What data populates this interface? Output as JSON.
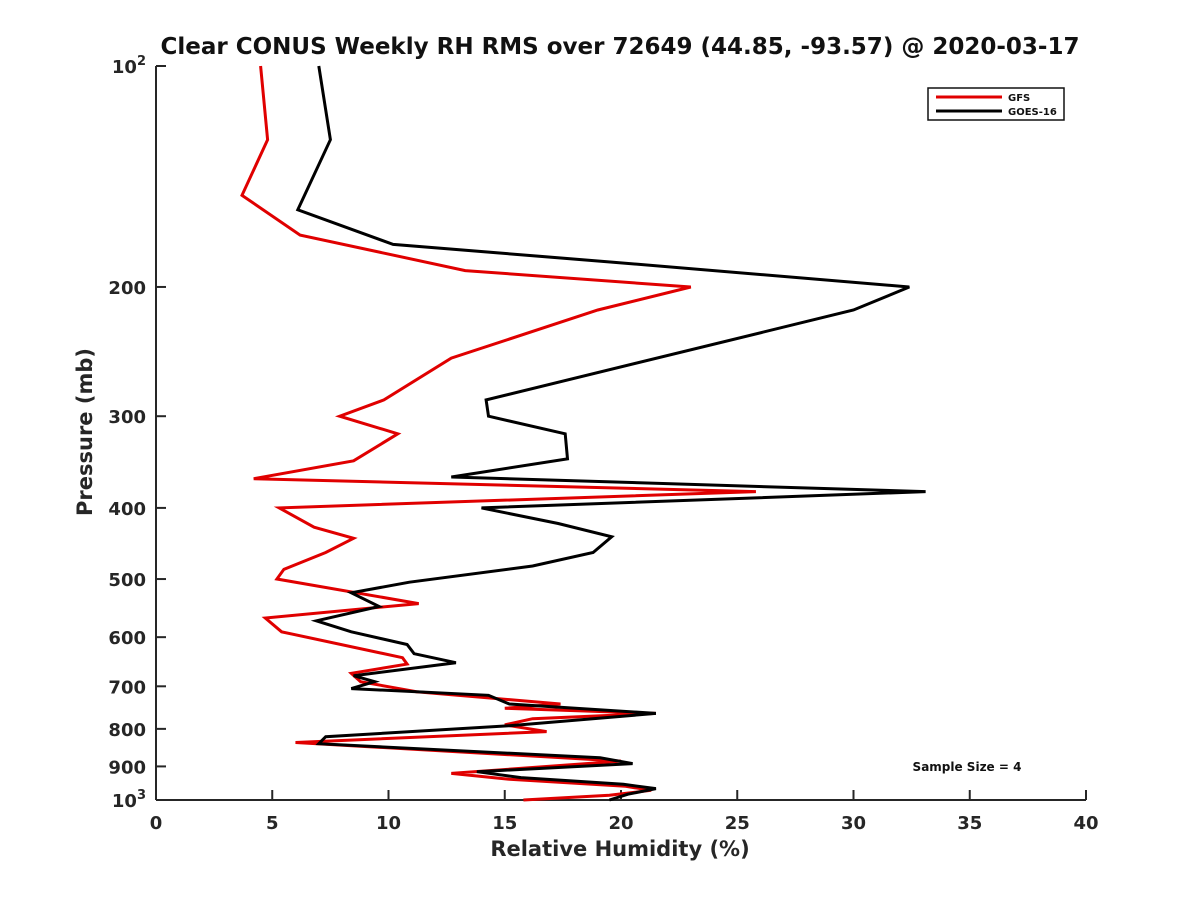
{
  "chart_data": {
    "type": "line",
    "title": "Clear CONUS Weekly RH RMS over 72649 (44.85, -93.57) @ 2020-03-17",
    "xlabel": "Relative Humidity (%)",
    "ylabel": "Pressure (mb)",
    "xlim": [
      0,
      40
    ],
    "ylim": [
      100,
      1000
    ],
    "y_scale": "log",
    "y_reversed": true,
    "x_ticks": [
      "0",
      "5",
      "10",
      "15",
      "20",
      "25",
      "30",
      "35",
      "40"
    ],
    "y_ticks": [
      {
        "value": 100,
        "base": "10",
        "exp": "2"
      },
      {
        "value": 200,
        "label": "200"
      },
      {
        "value": 300,
        "label": "300"
      },
      {
        "value": 400,
        "label": "400"
      },
      {
        "value": 500,
        "label": "500"
      },
      {
        "value": 600,
        "label": "600"
      },
      {
        "value": 700,
        "label": "700"
      },
      {
        "value": 800,
        "label": "800"
      },
      {
        "value": 900,
        "label": "900"
      },
      {
        "value": 1000,
        "base": "10",
        "exp": "3"
      }
    ],
    "legend_position": "top-right",
    "grid": false,
    "annotation": "Sample Size = 4",
    "series": [
      {
        "name": "GFS",
        "color": "#e00000",
        "points": [
          [
            4.5,
            100
          ],
          [
            4.8,
            126
          ],
          [
            3.7,
            150
          ],
          [
            6.2,
            170
          ],
          [
            13.3,
            190
          ],
          [
            23.0,
            200
          ],
          [
            19.0,
            215
          ],
          [
            12.7,
            250
          ],
          [
            9.8,
            285
          ],
          [
            7.9,
            300
          ],
          [
            10.4,
            317
          ],
          [
            8.5,
            345
          ],
          [
            4.2,
            365
          ],
          [
            25.8,
            380
          ],
          [
            5.3,
            400
          ],
          [
            6.8,
            425
          ],
          [
            8.5,
            440
          ],
          [
            7.3,
            460
          ],
          [
            5.5,
            485
          ],
          [
            5.2,
            500
          ],
          [
            11.3,
            540
          ],
          [
            4.7,
            565
          ],
          [
            5.4,
            590
          ],
          [
            10.6,
            640
          ],
          [
            10.8,
            653
          ],
          [
            8.4,
            672
          ],
          [
            8.8,
            690
          ],
          [
            11.2,
            712
          ],
          [
            17.4,
            740
          ],
          [
            15.0,
            750
          ],
          [
            21.5,
            762
          ],
          [
            16.2,
            775
          ],
          [
            15.0,
            790
          ],
          [
            16.8,
            807
          ],
          [
            6.0,
            835
          ],
          [
            20.0,
            885
          ],
          [
            12.7,
            920
          ],
          [
            15.2,
            937
          ],
          [
            20.2,
            958
          ],
          [
            21.3,
            970
          ],
          [
            19.5,
            985
          ],
          [
            15.8,
            1000
          ]
        ]
      },
      {
        "name": "GOES-16",
        "color": "#000000",
        "points": [
          [
            7.0,
            100
          ],
          [
            7.5,
            126
          ],
          [
            6.1,
            157
          ],
          [
            10.2,
            175
          ],
          [
            19.6,
            185
          ],
          [
            32.4,
            200
          ],
          [
            30.0,
            215
          ],
          [
            14.2,
            285
          ],
          [
            14.3,
            300
          ],
          [
            17.6,
            317
          ],
          [
            17.7,
            343
          ],
          [
            12.7,
            363
          ],
          [
            33.1,
            380
          ],
          [
            14.0,
            400
          ],
          [
            17.3,
            420
          ],
          [
            19.6,
            438
          ],
          [
            18.8,
            460
          ],
          [
            16.2,
            480
          ],
          [
            10.9,
            505
          ],
          [
            8.4,
            522
          ],
          [
            9.6,
            545
          ],
          [
            6.9,
            570
          ],
          [
            8.4,
            590
          ],
          [
            10.8,
            614
          ],
          [
            11.1,
            632
          ],
          [
            12.9,
            650
          ],
          [
            8.5,
            677
          ],
          [
            9.4,
            690
          ],
          [
            8.4,
            705
          ],
          [
            14.3,
            720
          ],
          [
            15.2,
            740
          ],
          [
            21.5,
            762
          ],
          [
            15.2,
            792
          ],
          [
            7.3,
            820
          ],
          [
            7.0,
            838
          ],
          [
            19.1,
            876
          ],
          [
            20.5,
            892
          ],
          [
            13.8,
            915
          ],
          [
            15.7,
            932
          ],
          [
            20.1,
            952
          ],
          [
            21.5,
            965
          ],
          [
            20.3,
            982
          ],
          [
            19.5,
            1000
          ]
        ]
      }
    ]
  }
}
